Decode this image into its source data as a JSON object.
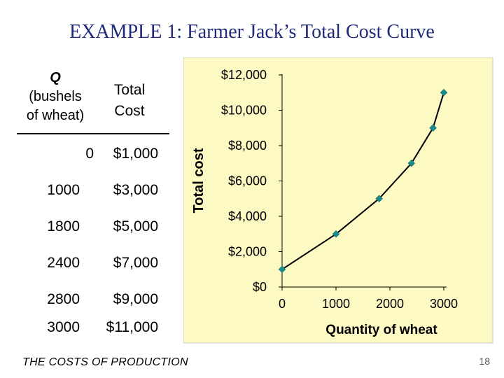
{
  "slide": {
    "title": "EXAMPLE 1:  Farmer Jack’s Total Cost Curve",
    "footer": "THE COSTS OF PRODUCTION",
    "page_number": "18"
  },
  "table": {
    "header_q_var": "Q",
    "header_q_unit_1": "(bushels",
    "header_q_unit_2": "of wheat)",
    "header_tc_1": "Total",
    "header_tc_2": "Cost",
    "rows": [
      {
        "q": "0",
        "tc": "$1,000"
      },
      {
        "q": "1000",
        "tc": "$3,000"
      },
      {
        "q": "1800",
        "tc": "$5,000"
      },
      {
        "q": "2400",
        "tc": "$7,000"
      },
      {
        "q": "2800",
        "tc": "$9,000"
      },
      {
        "q": "3000",
        "tc": "$11,000"
      }
    ]
  },
  "chart_data": {
    "type": "line",
    "x": [
      0,
      1000,
      1800,
      2400,
      2800,
      3000
    ],
    "y": [
      1000,
      3000,
      5000,
      7000,
      9000,
      11000
    ],
    "xlabel": "Quantity of wheat",
    "ylabel": "Total cost",
    "xlim": [
      0,
      3000
    ],
    "ylim": [
      0,
      12000
    ],
    "xticks": [
      0,
      1000,
      2000,
      3000
    ],
    "xtick_labels": [
      "0",
      "1000",
      "2000",
      "3000"
    ],
    "yticks": [
      0,
      2000,
      4000,
      6000,
      8000,
      10000,
      12000
    ],
    "ytick_labels": [
      "$0",
      "$2,000",
      "$4,000",
      "$6,000",
      "$8,000",
      "$10,000",
      "$12,000"
    ],
    "grid": false,
    "legend": "none",
    "colors": {
      "background": "#fdf9c3",
      "line": "#000000",
      "marker": "#1a8a8a"
    }
  }
}
